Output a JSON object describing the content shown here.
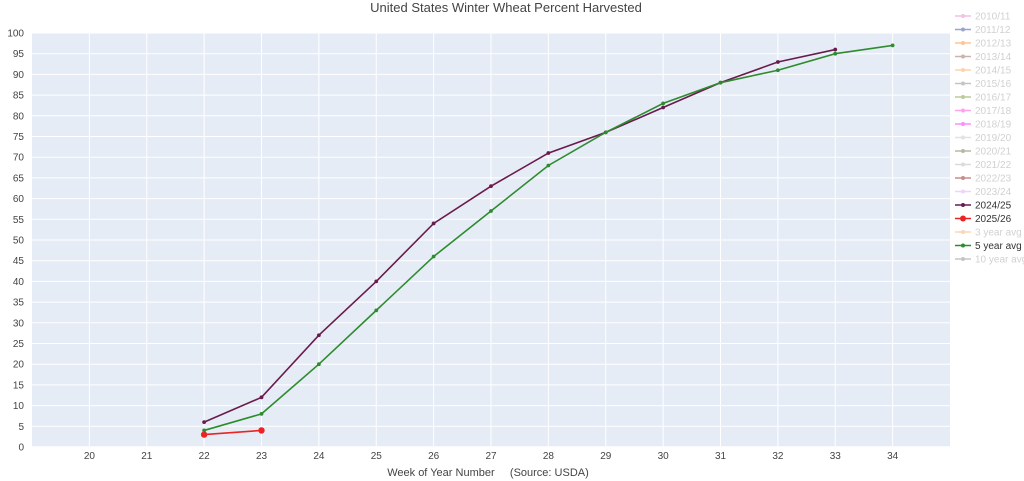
{
  "chart_data": {
    "type": "line",
    "title": "United States Winter Wheat Percent Harvested",
    "xlabel": "Week of Year Number     (Source: USDA)",
    "ylabel": "",
    "xlim": [
      19,
      35
    ],
    "ylim": [
      0,
      100
    ],
    "x_ticks": [
      20,
      21,
      22,
      23,
      24,
      25,
      26,
      27,
      28,
      29,
      30,
      31,
      32,
      33,
      34
    ],
    "y_ticks": [
      0,
      5,
      10,
      15,
      20,
      25,
      30,
      35,
      40,
      45,
      50,
      55,
      60,
      65,
      70,
      75,
      80,
      85,
      90,
      95,
      100
    ],
    "grid": true,
    "plot_bg": "#e5ecf6",
    "legend_position": "right",
    "series": [
      {
        "name": "2010/11",
        "color": "#e377c2",
        "visible": false,
        "x": [],
        "y": []
      },
      {
        "name": "2011/12",
        "color": "#1f3a93",
        "visible": false,
        "x": [],
        "y": []
      },
      {
        "name": "2012/13",
        "color": "#ff7f0e",
        "visible": false,
        "x": [],
        "y": []
      },
      {
        "name": "2013/14",
        "color": "#8c564b",
        "visible": false,
        "x": [],
        "y": []
      },
      {
        "name": "2014/15",
        "color": "#ff9f40",
        "visible": false,
        "x": [],
        "y": []
      },
      {
        "name": "2015/16",
        "color": "#7f7f7f",
        "visible": false,
        "x": [],
        "y": []
      },
      {
        "name": "2016/17",
        "color": "#6b8e23",
        "visible": false,
        "x": [],
        "y": []
      },
      {
        "name": "2017/18",
        "color": "#ff33cc",
        "visible": false,
        "x": [],
        "y": []
      },
      {
        "name": "2018/19",
        "color": "#ff00ff",
        "visible": false,
        "x": [],
        "y": []
      },
      {
        "name": "2019/20",
        "color": "#c0c0c0",
        "visible": false,
        "x": [],
        "y": []
      },
      {
        "name": "2020/21",
        "color": "#556b2f",
        "visible": false,
        "x": [],
        "y": []
      },
      {
        "name": "2021/22",
        "color": "#b0b0b0",
        "visible": false,
        "x": [],
        "y": []
      },
      {
        "name": "2022/23",
        "color": "#8b0000",
        "visible": false,
        "x": [],
        "y": []
      },
      {
        "name": "2023/24",
        "color": "#d8a0ff",
        "visible": false,
        "x": [],
        "y": []
      },
      {
        "name": "2024/25",
        "color": "#6a1b4d",
        "visible": true,
        "marker": "small",
        "x": [
          22,
          23,
          24,
          25,
          26,
          27,
          28,
          29,
          30,
          31,
          32,
          33
        ],
        "y": [
          6,
          12,
          27,
          40,
          54,
          63,
          71,
          76,
          82,
          88,
          93,
          96
        ]
      },
      {
        "name": "2025/26",
        "color": "#ee2222",
        "visible": true,
        "marker": "large",
        "x": [
          22,
          23
        ],
        "y": [
          3,
          4
        ]
      },
      {
        "name": "3 year avg",
        "color": "#f4a460",
        "visible": false,
        "x": [],
        "y": []
      },
      {
        "name": "5 year avg",
        "color": "#2e8b2e",
        "visible": true,
        "marker": "small",
        "x": [
          22,
          23,
          24,
          25,
          26,
          27,
          28,
          29,
          30,
          31,
          32,
          33,
          34
        ],
        "y": [
          4,
          8,
          20,
          33,
          46,
          57,
          68,
          76,
          83,
          88,
          91,
          95,
          97
        ]
      },
      {
        "name": "10 year avg",
        "color": "#808080",
        "visible": false,
        "x": [],
        "y": []
      }
    ]
  }
}
